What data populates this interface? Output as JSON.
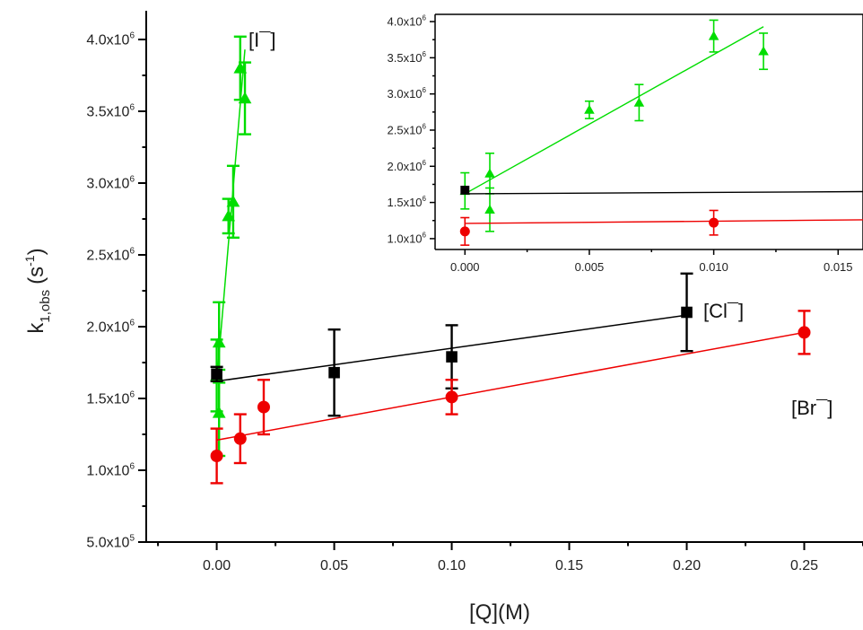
{
  "chart_data": [
    {
      "type": "scatter",
      "xlabel": "[Q](M)",
      "ylabel_main": "k",
      "ylabel_sub": "1,obs",
      "ylabel_unit_pre": "(s",
      "ylabel_unit_sup": "-1",
      "ylabel_unit_post": ")",
      "xlim": [
        -0.03,
        0.275
      ],
      "ylim": [
        500000,
        4200000
      ],
      "x_ticks": [
        0.0,
        0.05,
        0.1,
        0.15,
        0.2,
        0.25
      ],
      "x_tick_labels": [
        "0.00",
        "0.05",
        "0.10",
        "0.15",
        "0.20",
        "0.25"
      ],
      "y_ticks": [
        500000,
        1000000,
        1500000,
        2000000,
        2500000,
        3000000,
        3500000,
        4000000
      ],
      "y_tick_labels": [
        {
          "mantissa": "5.0x10",
          "exp": "5"
        },
        {
          "mantissa": "1.0x10",
          "exp": "6"
        },
        {
          "mantissa": "1.5x10",
          "exp": "6"
        },
        {
          "mantissa": "2.0x10",
          "exp": "6"
        },
        {
          "mantissa": "2.5x10",
          "exp": "6"
        },
        {
          "mantissa": "3.0x10",
          "exp": "6"
        },
        {
          "mantissa": "3.5x10",
          "exp": "6"
        },
        {
          "mantissa": "4.0x10",
          "exp": "6"
        }
      ],
      "grid": false,
      "series": [
        {
          "name": "[I¯]",
          "color": "#00dd00",
          "marker": "triangle",
          "x": [
            0.0,
            0.001,
            0.001,
            0.005,
            0.007,
            0.01,
            0.012
          ],
          "y": [
            1660000,
            1400000,
            1890000,
            2770000,
            2870000,
            3800000,
            3590000
          ],
          "yerr": [
            250000,
            300000,
            280000,
            120000,
            250000,
            220000,
            250000
          ],
          "fit": {
            "x": [
              0.0,
              0.012
            ],
            "y": [
              1620000,
              3930000
            ]
          }
        },
        {
          "name": "[Cl¯]",
          "color": "#000000",
          "marker": "square",
          "x": [
            0.0,
            0.05,
            0.1,
            0.2
          ],
          "y": [
            1670000,
            1680000,
            1790000,
            2100000
          ],
          "yerr": [
            50000,
            300000,
            220000,
            270000
          ],
          "fit": {
            "x": [
              0.0,
              0.2
            ],
            "y": [
              1620000,
              2080000
            ]
          }
        },
        {
          "name": "[Br¯]",
          "color": "#ee0000",
          "marker": "circle",
          "x": [
            0.0,
            0.01,
            0.02,
            0.1,
            0.25
          ],
          "y": [
            1100000,
            1220000,
            1440000,
            1510000,
            1960000
          ],
          "yerr": [
            190000,
            170000,
            190000,
            120000,
            150000
          ],
          "fit": {
            "x": [
              0.0,
              0.25
            ],
            "y": [
              1210000,
              1960000
            ]
          }
        }
      ],
      "annotations": [
        "[I¯]",
        "[Cl¯]",
        "[Br¯]"
      ]
    },
    {
      "type": "scatter",
      "role": "inset",
      "xlim": [
        -0.0012,
        0.016
      ],
      "ylim": [
        850000,
        4100000
      ],
      "x_ticks": [
        0.0,
        0.005,
        0.01,
        0.015
      ],
      "x_tick_labels": [
        "0.000",
        "0.005",
        "0.010",
        "0.015"
      ],
      "y_ticks": [
        1000000,
        1500000,
        2000000,
        2500000,
        3000000,
        3500000,
        4000000
      ],
      "y_tick_labels": [
        {
          "mantissa": "1.0x10",
          "exp": "6"
        },
        {
          "mantissa": "1.5x10",
          "exp": "6"
        },
        {
          "mantissa": "2.0x10",
          "exp": "6"
        },
        {
          "mantissa": "2.5x10",
          "exp": "6"
        },
        {
          "mantissa": "3.0x10",
          "exp": "6"
        },
        {
          "mantissa": "3.5x10",
          "exp": "6"
        },
        {
          "mantissa": "4.0x10",
          "exp": "6"
        }
      ],
      "grid": false,
      "series": [
        {
          "color": "#00dd00",
          "marker": "triangle",
          "x": [
            0.0,
            0.001,
            0.001,
            0.005,
            0.007,
            0.01,
            0.012
          ],
          "y": [
            1660000,
            1400000,
            1900000,
            2780000,
            2880000,
            3800000,
            3590000
          ],
          "yerr": [
            250000,
            300000,
            280000,
            120000,
            250000,
            220000,
            250000
          ],
          "fit": {
            "x": [
              0.0,
              0.012
            ],
            "y": [
              1620000,
              3930000
            ]
          }
        },
        {
          "color": "#000000",
          "marker": "square",
          "x": [
            0.0
          ],
          "y": [
            1670000
          ],
          "yerr": [
            0
          ],
          "fit": {
            "x": [
              0.0,
              0.016
            ],
            "y": [
              1620000,
              1650000
            ]
          }
        },
        {
          "color": "#ee0000",
          "marker": "circle",
          "x": [
            0.0,
            0.01
          ],
          "y": [
            1100000,
            1220000
          ],
          "yerr": [
            190000,
            170000
          ],
          "fit": {
            "x": [
              0.0,
              0.016
            ],
            "y": [
              1210000,
              1260000
            ]
          }
        }
      ]
    }
  ]
}
